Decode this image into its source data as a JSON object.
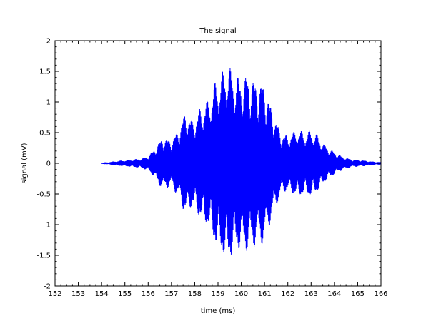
{
  "chart_data": {
    "type": "line",
    "title": "The signal",
    "xlabel": "time (ms)",
    "ylabel": "signal (mV)",
    "xlim": [
      152,
      166
    ],
    "ylim": [
      -2,
      2
    ],
    "xticks": [
      152,
      153,
      154,
      155,
      156,
      157,
      158,
      159,
      160,
      161,
      162,
      163,
      164,
      165,
      166
    ],
    "yticks": [
      -2,
      -1.5,
      -1,
      -0.5,
      0,
      0.5,
      1,
      1.5,
      2
    ],
    "grid": false,
    "series": [
      {
        "color": "#0000ff",
        "x_start": 154,
        "x_end": 166,
        "envelope": [
          {
            "x": 154.0,
            "y": 0.01
          },
          {
            "x": 154.3,
            "y": 0.02
          },
          {
            "x": 154.7,
            "y": 0.04
          },
          {
            "x": 155.0,
            "y": 0.05
          },
          {
            "x": 155.3,
            "y": 0.06
          },
          {
            "x": 155.7,
            "y": 0.08
          },
          {
            "x": 156.0,
            "y": 0.12
          },
          {
            "x": 156.2,
            "y": 0.2
          },
          {
            "x": 156.6,
            "y": 0.42
          },
          {
            "x": 157.0,
            "y": 0.38
          },
          {
            "x": 157.3,
            "y": 0.55
          },
          {
            "x": 157.6,
            "y": 0.85
          },
          {
            "x": 157.9,
            "y": 0.7
          },
          {
            "x": 158.3,
            "y": 0.95
          },
          {
            "x": 158.6,
            "y": 1.05
          },
          {
            "x": 158.9,
            "y": 1.35
          },
          {
            "x": 159.2,
            "y": 1.5
          },
          {
            "x": 159.4,
            "y": 1.65
          },
          {
            "x": 159.7,
            "y": 1.45
          },
          {
            "x": 160.0,
            "y": 1.4
          },
          {
            "x": 160.3,
            "y": 1.45
          },
          {
            "x": 160.6,
            "y": 1.35
          },
          {
            "x": 161.0,
            "y": 1.3
          },
          {
            "x": 161.3,
            "y": 0.9
          },
          {
            "x": 161.7,
            "y": 0.5
          },
          {
            "x": 162.0,
            "y": 0.45
          },
          {
            "x": 162.4,
            "y": 0.55
          },
          {
            "x": 162.8,
            "y": 0.5
          },
          {
            "x": 163.0,
            "y": 0.55
          },
          {
            "x": 163.3,
            "y": 0.45
          },
          {
            "x": 163.6,
            "y": 0.3
          },
          {
            "x": 164.0,
            "y": 0.18
          },
          {
            "x": 164.4,
            "y": 0.1
          },
          {
            "x": 164.8,
            "y": 0.06
          },
          {
            "x": 165.2,
            "y": 0.05
          },
          {
            "x": 165.6,
            "y": 0.03
          },
          {
            "x": 166.0,
            "y": 0.02
          }
        ]
      }
    ]
  }
}
